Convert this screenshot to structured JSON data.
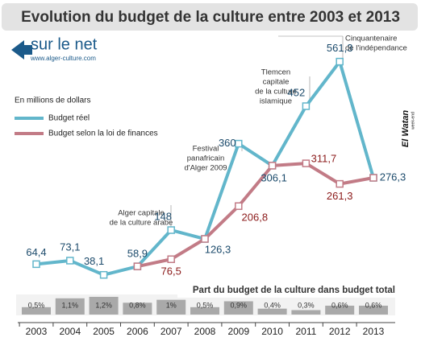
{
  "header": {
    "title": "Evolution du budget de la culture entre 2003 et 2013",
    "logo": "sur le net",
    "url": "www.alger-culture.com",
    "brand": "El Watan",
    "brand_sub": "week-end"
  },
  "chart_data": [
    {
      "type": "line",
      "unit_label": "En millions de dollars",
      "x": [
        "2003",
        "2004",
        "2005",
        "2006",
        "2007",
        "2008",
        "2009",
        "2010",
        "2011",
        "2012",
        "2013"
      ],
      "ylim": [
        0,
        600
      ],
      "series": [
        {
          "name": "Budget réel",
          "color": "#62b6cb",
          "label_color": "#1b4a6b",
          "values": [
            64.4,
            73.1,
            38.1,
            58.9,
            148,
            126.3,
            360,
            306.1,
            452,
            561.3,
            276.3
          ],
          "value_labels": [
            "64,4",
            "73,1",
            "38,1",
            "58,9",
            "148",
            "126,3",
            "360",
            "306,1",
            "452",
            "561,3",
            "276,3"
          ]
        },
        {
          "name": "Budget selon la loi de finances",
          "color": "#c27b86",
          "label_color": "#8b1a1a",
          "values": [
            null,
            null,
            null,
            58.9,
            76.5,
            126.3,
            206.8,
            306.1,
            311.7,
            261.3,
            276.3
          ],
          "value_labels": [
            null,
            null,
            null,
            null,
            "76,5",
            null,
            "206,8",
            null,
            "311,7",
            "261,3",
            null
          ]
        }
      ],
      "annotations": [
        {
          "lines": [
            "Alger capitale",
            "de la culture arabe"
          ]
        },
        {
          "lines": [
            "Festival",
            "panafricain",
            "d'Alger 2009"
          ]
        },
        {
          "lines": [
            "Tlemcen",
            "capitale",
            "de la culture",
            "islamique"
          ]
        },
        {
          "lines": [
            "Cinquantenaire",
            "de l'indépendance"
          ]
        }
      ]
    },
    {
      "type": "bar",
      "title": "Part du budget de la culture dans budget total",
      "color": "#a9a9a9",
      "ylim": [
        0,
        1.2
      ],
      "values": [
        0.5,
        1.1,
        1.2,
        0.8,
        1,
        0.5,
        0.9,
        0.4,
        0.3,
        0.6,
        0.6
      ],
      "value_labels": [
        "0,5%",
        "1,1%",
        "1,2%",
        "0,8%",
        "1%",
        "0,5%",
        "0,9%",
        "0,4%",
        "0,3%",
        "0,6%",
        "0,6%"
      ]
    }
  ]
}
